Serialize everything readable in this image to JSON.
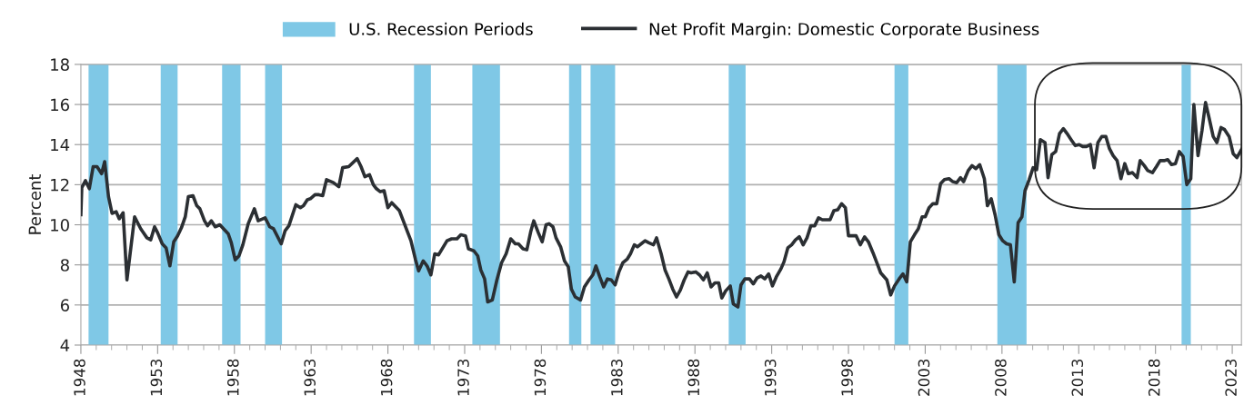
{
  "chart_data": {
    "type": "line",
    "ylabel": "Percent",
    "legend": "top",
    "grid": "y",
    "line_style": "solid",
    "marker": "none",
    "xlim": [
      1948,
      2023.6
    ],
    "ylim": [
      4,
      18
    ],
    "yticks": [
      4,
      6,
      8,
      10,
      12,
      14,
      16,
      18
    ],
    "xticks": [
      1948,
      {
        "value": 1949,
        "label": null
      },
      {
        "value": 1950,
        "label": null
      },
      {
        "value": 1951,
        "label": null
      },
      {
        "value": 1952,
        "label": null
      },
      1953,
      {
        "value": 1954,
        "label": null
      },
      {
        "value": 1955,
        "label": null
      },
      {
        "value": 1956,
        "label": null
      },
      {
        "value": 1957,
        "label": null
      },
      1958,
      {
        "value": 1959,
        "label": null
      },
      {
        "value": 1960,
        "label": null
      },
      {
        "value": 1961,
        "label": null
      },
      {
        "value": 1962,
        "label": null
      },
      1963,
      {
        "value": 1964,
        "label": null
      },
      {
        "value": 1965,
        "label": null
      },
      {
        "value": 1966,
        "label": null
      },
      {
        "value": 1967,
        "label": null
      },
      1968,
      {
        "value": 1969,
        "label": null
      },
      {
        "value": 1970,
        "label": null
      },
      {
        "value": 1971,
        "label": null
      },
      {
        "value": 1972,
        "label": null
      },
      1973,
      {
        "value": 1974,
        "label": null
      },
      {
        "value": 1975,
        "label": null
      },
      {
        "value": 1976,
        "label": null
      },
      {
        "value": 1977,
        "label": null
      },
      1978,
      {
        "value": 1979,
        "label": null
      },
      {
        "value": 1980,
        "label": null
      },
      {
        "value": 1981,
        "label": null
      },
      {
        "value": 1982,
        "label": null
      },
      1983,
      {
        "value": 1984,
        "label": null
      },
      {
        "value": 1985,
        "label": null
      },
      {
        "value": 1986,
        "label": null
      },
      {
        "value": 1987,
        "label": null
      },
      1988,
      {
        "value": 1989,
        "label": null
      },
      {
        "value": 1990,
        "label": null
      },
      {
        "value": 1991,
        "label": null
      },
      {
        "value": 1992,
        "label": null
      },
      1993,
      {
        "value": 1994,
        "label": null
      },
      {
        "value": 1995,
        "label": null
      },
      {
        "value": 1996,
        "label": null
      },
      {
        "value": 1997,
        "label": null
      },
      1998,
      {
        "value": 1999,
        "label": null
      },
      {
        "value": 2000,
        "label": null
      },
      {
        "value": 2001,
        "label": null
      },
      {
        "value": 2002,
        "label": null
      },
      2003,
      {
        "value": 2004,
        "label": null
      },
      {
        "value": 2005,
        "label": null
      },
      {
        "value": 2006,
        "label": null
      },
      {
        "value": 2007,
        "label": null
      },
      2008,
      {
        "value": 2009,
        "label": null
      },
      {
        "value": 2010,
        "label": null
      },
      {
        "value": 2011,
        "label": null
      },
      {
        "value": 2012,
        "label": null
      },
      2013,
      {
        "value": 2014,
        "label": null
      },
      {
        "value": 2015,
        "label": null
      },
      {
        "value": 2016,
        "label": null
      },
      {
        "value": 2017,
        "label": null
      },
      2018,
      {
        "value": 2019,
        "label": null
      },
      {
        "value": 2020,
        "label": null
      },
      {
        "value": 2021,
        "label": null
      },
      {
        "value": 2022,
        "label": null
      },
      2023
    ],
    "bands": [
      {
        "axis": "x",
        "from": 1948.5,
        "to": 1949.8,
        "label": "U.S. Recession Periods",
        "color": "#7fc8e6"
      },
      {
        "axis": "x",
        "from": 1953.2,
        "to": 1954.3,
        "color": "#7fc8e6"
      },
      {
        "axis": "x",
        "from": 1957.2,
        "to": 1958.4,
        "color": "#7fc8e6"
      },
      {
        "axis": "x",
        "from": 1960.0,
        "to": 1961.1,
        "color": "#7fc8e6"
      },
      {
        "axis": "x",
        "from": 1969.7,
        "to": 1970.8,
        "color": "#7fc8e6"
      },
      {
        "axis": "x",
        "from": 1973.5,
        "to": 1975.3,
        "color": "#7fc8e6"
      },
      {
        "axis": "x",
        "from": 1979.8,
        "to": 1980.6,
        "color": "#7fc8e6"
      },
      {
        "axis": "x",
        "from": 1981.2,
        "to": 1982.8,
        "color": "#7fc8e6"
      },
      {
        "axis": "x",
        "from": 1990.2,
        "to": 1991.3,
        "color": "#7fc8e6"
      },
      {
        "axis": "x",
        "from": 2001.0,
        "to": 2001.9,
        "color": "#7fc8e6"
      },
      {
        "axis": "x",
        "from": 2007.7,
        "to": 2009.6,
        "color": "#7fc8e6"
      },
      {
        "axis": "x",
        "from": 2019.7,
        "to": 2020.3,
        "color": "#7fc8e6"
      }
    ],
    "series": [
      {
        "name": "Net Profit Margin: Domestic Corporate Business",
        "color": "#2b2f33",
        "x": [
          1948.0,
          1948.06,
          1948.3,
          1948.55,
          1948.8,
          1949.05,
          1949.35,
          1949.55,
          1949.8,
          1950.03,
          1950.3,
          1950.5,
          1950.75,
          1951.0,
          1951.5,
          1951.9,
          1952.3,
          1952.55,
          1952.8,
          1953.0,
          1953.3,
          1953.55,
          1953.8,
          1954.05,
          1954.3,
          1954.55,
          1954.8,
          1955.0,
          1955.3,
          1955.55,
          1955.75,
          1956.05,
          1956.25,
          1956.5,
          1956.75,
          1957.05,
          1957.35,
          1957.6,
          1957.8,
          1958.05,
          1958.3,
          1958.55,
          1958.9,
          1959.3,
          1959.55,
          1960.0,
          1960.3,
          1960.55,
          1961.05,
          1961.3,
          1961.55,
          1962.0,
          1962.3,
          1962.5,
          1962.75,
          1962.95,
          1963.25,
          1963.5,
          1963.75,
          1964.0,
          1964.45,
          1964.8,
          1965.05,
          1965.45,
          1966.0,
          1966.25,
          1966.5,
          1966.8,
          1967.05,
          1967.25,
          1967.5,
          1967.75,
          1968.0,
          1968.25,
          1968.75,
          1969.0,
          1969.3,
          1969.5,
          1969.8,
          1970.0,
          1970.3,
          1970.55,
          1970.8,
          1971.05,
          1971.3,
          1971.85,
          1972.15,
          1972.5,
          1972.75,
          1973.05,
          1973.25,
          1973.6,
          1973.85,
          1974.05,
          1974.3,
          1974.5,
          1974.8,
          1975.1,
          1975.4,
          1975.7,
          1976.0,
          1976.3,
          1976.5,
          1976.8,
          1977.05,
          1977.3,
          1977.5,
          1977.8,
          1978.05,
          1978.3,
          1978.5,
          1978.75,
          1978.95,
          1979.25,
          1979.5,
          1979.75,
          1979.95,
          1980.2,
          1980.55,
          1980.8,
          1981.1,
          1981.35,
          1981.55,
          1981.8,
          1982.05,
          1982.3,
          1982.55,
          1982.8,
          1983.05,
          1983.3,
          1983.6,
          1983.8,
          1984.05,
          1984.25,
          1984.5,
          1984.75,
          1985.0,
          1985.3,
          1985.5,
          1985.8,
          1986.05,
          1986.3,
          1986.55,
          1986.8,
          1987.05,
          1987.3,
          1987.55,
          1987.75,
          1988.05,
          1988.3,
          1988.55,
          1988.8,
          1989.05,
          1989.3,
          1989.55,
          1989.75,
          1990.0,
          1990.3,
          1990.5,
          1990.8,
          1991.0,
          1991.25,
          1991.55,
          1991.8,
          1992.05,
          1992.3,
          1992.55,
          1992.8,
          1993.05,
          1993.3,
          1993.6,
          1993.8,
          1994.05,
          1994.3,
          1994.55,
          1994.8,
          1995.05,
          1995.3,
          1995.55,
          1995.8,
          1996.05,
          1996.3,
          1996.8,
          1997.05,
          1997.3,
          1997.55,
          1997.8,
          1998.0,
          1998.5,
          1998.77,
          1999.05,
          1999.3,
          1999.6,
          1999.85,
          2000.1,
          2000.5,
          2000.75,
          2001.0,
          2001.3,
          2001.55,
          2001.8,
          2002.03,
          2002.3,
          2002.55,
          2002.8,
          2003.0,
          2003.25,
          2003.5,
          2003.75,
          2004.0,
          2004.25,
          2004.55,
          2004.8,
          2005.05,
          2005.3,
          2005.5,
          2005.8,
          2006.05,
          2006.3,
          2006.55,
          2006.85,
          2007.05,
          2007.3,
          2007.55,
          2007.8,
          2008.05,
          2008.3,
          2008.55,
          2008.8,
          2009.05,
          2009.3,
          2009.5,
          2009.77,
          2010.03,
          2010.26,
          2010.5,
          2010.8,
          2011.0,
          2011.25,
          2011.5,
          2011.75,
          2012.0,
          2012.24,
          2012.5,
          2012.77,
          2013.03,
          2013.26,
          2013.5,
          2013.76,
          2014.0,
          2014.25,
          2014.5,
          2014.77,
          2015.0,
          2015.24,
          2015.5,
          2015.75,
          2016.0,
          2016.23,
          2016.5,
          2016.8,
          2017.0,
          2017.27,
          2017.5,
          2017.8,
          2018.06,
          2018.3,
          2018.56,
          2018.8,
          2019.05,
          2019.3,
          2019.55,
          2019.8,
          2020.04,
          2020.3,
          2020.5,
          2020.77,
          2021.03,
          2021.26,
          2021.5,
          2021.76,
          2022.0,
          2022.27,
          2022.5,
          2022.8,
          2023.06,
          2023.3,
          2023.6
        ],
        "values": [
          10.5,
          11.85,
          12.2,
          11.8,
          12.9,
          12.9,
          12.55,
          13.15,
          11.4,
          10.57,
          10.65,
          10.3,
          10.6,
          7.25,
          10.4,
          9.8,
          9.35,
          9.25,
          9.9,
          9.6,
          9.05,
          8.85,
          7.95,
          9.15,
          9.45,
          9.85,
          10.4,
          11.4,
          11.45,
          10.95,
          10.8,
          10.2,
          9.95,
          10.2,
          9.9,
          10.0,
          9.75,
          9.55,
          9.1,
          8.25,
          8.45,
          9.0,
          10.05,
          10.8,
          10.2,
          10.35,
          9.9,
          9.8,
          9.05,
          9.7,
          9.95,
          11.0,
          10.85,
          10.95,
          11.25,
          11.3,
          11.5,
          11.5,
          11.45,
          12.25,
          12.1,
          11.9,
          12.85,
          12.9,
          13.3,
          12.9,
          12.4,
          12.5,
          12.0,
          11.8,
          11.65,
          11.7,
          10.85,
          11.1,
          10.7,
          10.2,
          9.6,
          9.2,
          8.25,
          7.7,
          8.2,
          7.95,
          7.5,
          8.55,
          8.5,
          9.2,
          9.3,
          9.3,
          9.5,
          9.45,
          8.8,
          8.7,
          8.45,
          7.75,
          7.3,
          6.15,
          6.25,
          7.25,
          8.1,
          8.55,
          9.3,
          9.05,
          9.05,
          8.8,
          8.75,
          9.65,
          10.2,
          9.6,
          9.15,
          10.0,
          10.05,
          9.9,
          9.35,
          8.9,
          8.2,
          7.9,
          6.8,
          6.4,
          6.25,
          6.9,
          7.25,
          7.5,
          7.95,
          7.4,
          6.9,
          7.3,
          7.25,
          7.0,
          7.65,
          8.1,
          8.3,
          8.55,
          9.0,
          8.9,
          9.05,
          9.2,
          9.1,
          9.0,
          9.35,
          8.55,
          7.75,
          7.3,
          6.8,
          6.4,
          6.75,
          7.25,
          7.65,
          7.6,
          7.65,
          7.5,
          7.25,
          7.6,
          6.9,
          7.1,
          7.1,
          6.35,
          6.7,
          6.95,
          6.05,
          5.9,
          7.0,
          7.3,
          7.3,
          7.05,
          7.35,
          7.45,
          7.3,
          7.55,
          6.95,
          7.4,
          7.8,
          8.15,
          8.85,
          9.0,
          9.25,
          9.4,
          9.0,
          9.35,
          9.95,
          9.95,
          10.35,
          10.25,
          10.25,
          10.7,
          10.75,
          11.05,
          10.85,
          9.45,
          9.45,
          9.0,
          9.4,
          9.15,
          8.6,
          8.1,
          7.6,
          7.25,
          6.5,
          6.95,
          7.3,
          7.55,
          7.15,
          9.15,
          9.5,
          9.8,
          10.4,
          10.4,
          10.85,
          11.05,
          11.05,
          12.05,
          12.25,
          12.3,
          12.15,
          12.1,
          12.35,
          12.15,
          12.7,
          12.95,
          12.8,
          13.0,
          12.3,
          10.95,
          11.3,
          10.5,
          9.5,
          9.2,
          9.05,
          9.0,
          7.15,
          10.1,
          10.4,
          11.7,
          12.25,
          12.85,
          12.75,
          14.25,
          14.1,
          12.35,
          13.5,
          13.65,
          14.55,
          14.8,
          14.55,
          14.25,
          13.95,
          14.0,
          13.9,
          13.9,
          14.0,
          12.85,
          14.1,
          14.4,
          14.4,
          13.8,
          13.45,
          13.2,
          12.3,
          13.05,
          12.55,
          12.6,
          12.35,
          13.2,
          12.95,
          12.7,
          12.6,
          12.9,
          13.2,
          13.2,
          13.25,
          13.0,
          13.05,
          13.65,
          13.4,
          12.0,
          12.3,
          16.0,
          13.45,
          14.7,
          16.1,
          15.3,
          14.4,
          14.1,
          14.85,
          14.75,
          14.4,
          13.55,
          13.35,
          13.75
        ]
      }
    ]
  }
}
